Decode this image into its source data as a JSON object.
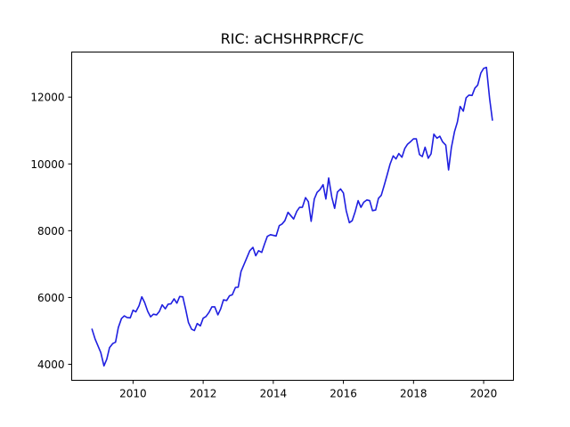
{
  "chart_data": {
    "type": "line",
    "title": "RIC: aCHSHRPRCF/C",
    "xlabel": "",
    "ylabel": "",
    "xlim": [
      2008.25,
      2020.85
    ],
    "ylim": [
      3520,
      13350
    ],
    "grid": false,
    "legend": "none",
    "x_ticks": [
      2010,
      2012,
      2014,
      2016,
      2018,
      2020
    ],
    "x_tick_labels": [
      "2010",
      "2012",
      "2014",
      "2016",
      "2018",
      "2020"
    ],
    "y_ticks": [
      4000,
      6000,
      8000,
      10000,
      12000
    ],
    "y_tick_labels": [
      "4000",
      "6000",
      "8000",
      "10000",
      "12000"
    ],
    "series": [
      {
        "color": "#1f1fe0",
        "x": [
          2008.83,
          2008.92,
          2009.0,
          2009.08,
          2009.17,
          2009.25,
          2009.33,
          2009.42,
          2009.5,
          2009.58,
          2009.67,
          2009.75,
          2009.83,
          2009.92,
          2010.0,
          2010.08,
          2010.17,
          2010.25,
          2010.33,
          2010.42,
          2010.5,
          2010.58,
          2010.67,
          2010.75,
          2010.83,
          2010.92,
          2011.0,
          2011.08,
          2011.17,
          2011.25,
          2011.33,
          2011.42,
          2011.5,
          2011.58,
          2011.67,
          2011.75,
          2011.83,
          2011.92,
          2012.0,
          2012.08,
          2012.17,
          2012.25,
          2012.33,
          2012.42,
          2012.5,
          2012.58,
          2012.67,
          2012.75,
          2012.83,
          2012.92,
          2013.0,
          2013.08,
          2013.17,
          2013.25,
          2013.33,
          2013.42,
          2013.5,
          2013.58,
          2013.67,
          2013.75,
          2013.83,
          2013.92,
          2014.0,
          2014.08,
          2014.17,
          2014.25,
          2014.33,
          2014.42,
          2014.5,
          2014.58,
          2014.67,
          2014.75,
          2014.83,
          2014.92,
          2015.0,
          2015.08,
          2015.17,
          2015.25,
          2015.33,
          2015.42,
          2015.5,
          2015.58,
          2015.67,
          2015.75,
          2015.83,
          2015.92,
          2016.0,
          2016.08,
          2016.17,
          2016.25,
          2016.33,
          2016.42,
          2016.5,
          2016.58,
          2016.67,
          2016.75,
          2016.83,
          2016.92,
          2017.0,
          2017.08,
          2017.17,
          2017.25,
          2017.33,
          2017.42,
          2017.5,
          2017.58,
          2017.67,
          2017.75,
          2017.83,
          2017.92,
          2018.0,
          2018.08,
          2018.17,
          2018.25,
          2018.33,
          2018.42,
          2018.5,
          2018.58,
          2018.67,
          2018.75,
          2018.83,
          2018.92,
          2019.0,
          2019.08,
          2019.17,
          2019.25,
          2019.33,
          2019.42,
          2019.5,
          2019.58,
          2019.67,
          2019.75,
          2019.83,
          2019.92,
          2020.0,
          2020.08,
          2020.17,
          2020.25
        ],
        "values": [
          5050,
          4750,
          4550,
          4350,
          3950,
          4150,
          4500,
          4620,
          4660,
          5100,
          5370,
          5450,
          5400,
          5390,
          5620,
          5570,
          5750,
          6020,
          5850,
          5580,
          5420,
          5500,
          5480,
          5580,
          5780,
          5660,
          5800,
          5810,
          5960,
          5830,
          6030,
          6020,
          5650,
          5250,
          5050,
          5010,
          5220,
          5150,
          5380,
          5430,
          5560,
          5720,
          5720,
          5480,
          5660,
          5930,
          5910,
          6050,
          6080,
          6300,
          6310,
          6780,
          7000,
          7200,
          7400,
          7500,
          7250,
          7400,
          7350,
          7600,
          7830,
          7880,
          7860,
          7840,
          8150,
          8200,
          8300,
          8550,
          8450,
          8350,
          8580,
          8700,
          8700,
          8990,
          8870,
          8280,
          8950,
          9150,
          9230,
          9380,
          8950,
          9580,
          9000,
          8670,
          9160,
          9250,
          9130,
          8600,
          8240,
          8300,
          8550,
          8900,
          8700,
          8850,
          8920,
          8900,
          8600,
          8620,
          8970,
          9060,
          9380,
          9680,
          9990,
          10240,
          10150,
          10310,
          10200,
          10460,
          10590,
          10670,
          10750,
          10750,
          10280,
          10220,
          10500,
          10170,
          10300,
          10890,
          10770,
          10830,
          10660,
          10560,
          9820,
          10490,
          10970,
          11250,
          11720,
          11580,
          11980,
          12060,
          12050,
          12270,
          12360,
          12720,
          12860,
          12890,
          11960,
          11310
        ]
      }
    ]
  }
}
